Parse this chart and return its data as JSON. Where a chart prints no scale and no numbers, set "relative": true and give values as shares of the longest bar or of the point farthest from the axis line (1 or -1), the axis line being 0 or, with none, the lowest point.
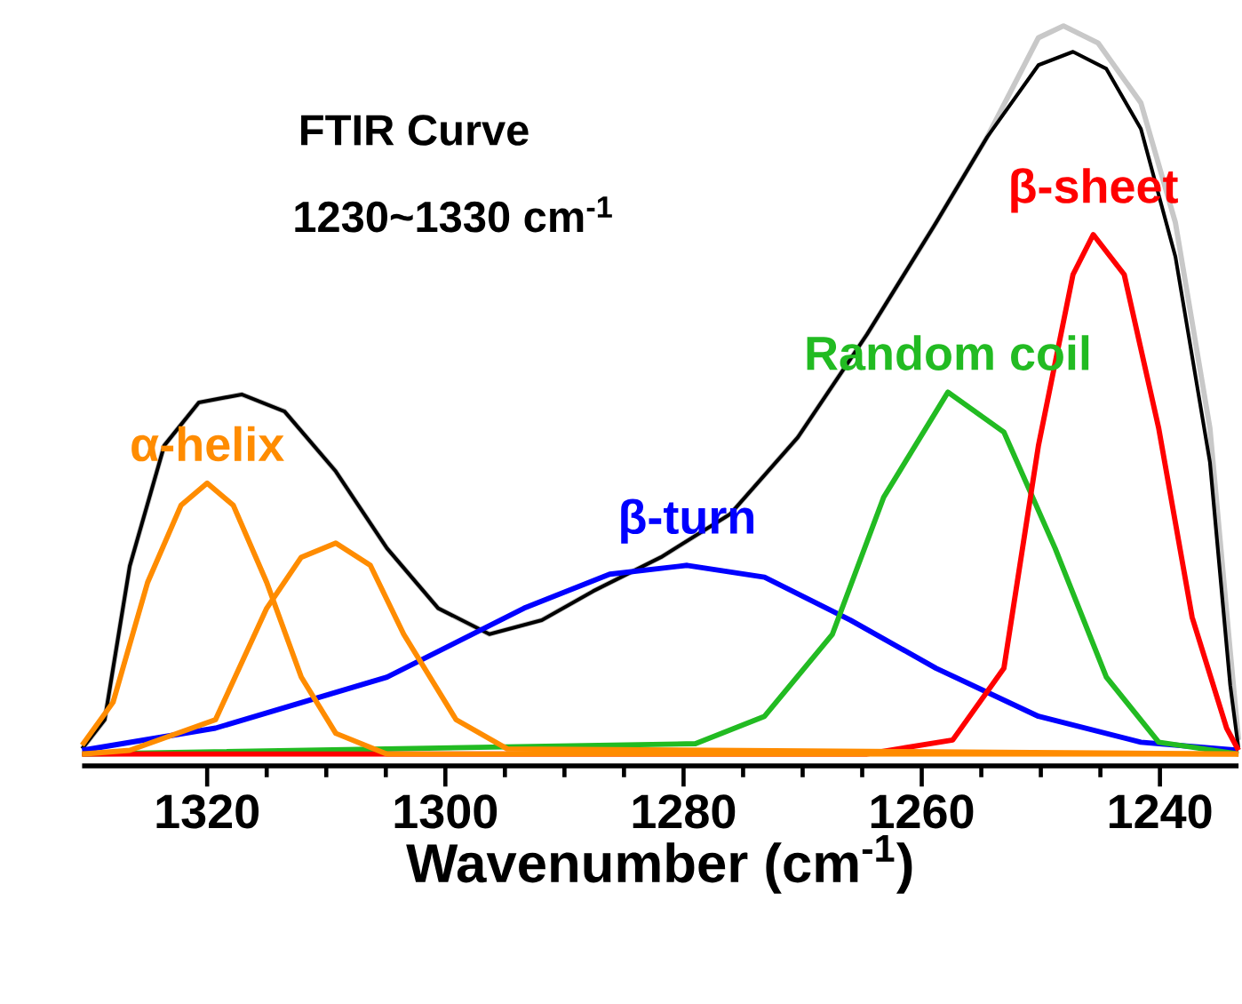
{
  "chart_data": {
    "type": "line",
    "title": "FTIR Curve",
    "subtitle": "1230~1330 cm$^{-1}$",
    "xlabel": "Wavenumber (cm$^{-1}$)",
    "relative": true,
    "xlim": [
      1330.5,
      1233.4
    ],
    "xticks": [
      1320,
      1300,
      1280,
      1260,
      1240
    ],
    "line_style": "solid",
    "grid": false,
    "series": [
      {
        "color": "#000000",
        "x": [
          1330.5,
          1328.6,
          1326.5,
          1323.6,
          1320.7,
          1317.1,
          1313.5,
          1309.2,
          1304.9,
          1300.6,
          1296.3,
          1291.9,
          1287.6,
          1281.9,
          1276.1,
          1270.4,
          1264.6,
          1258.8,
          1254.5,
          1250.2,
          1247.3,
          1244.5,
          1241.6,
          1238.7,
          1235.8,
          1234.1,
          1233.4
        ],
        "values": [
          0.023,
          0.0625,
          0.27,
          0.433,
          0.491,
          0.502,
          0.479,
          0.398,
          0.294,
          0.213,
          0.178,
          0.197,
          0.236,
          0.282,
          0.34,
          0.444,
          0.583,
          0.734,
          0.85,
          0.947,
          0.965,
          0.942,
          0.861,
          0.688,
          0.41,
          0.109,
          0.023
        ]
      },
      {
        "color": "#c8c8c8",
        "x": [
          1330.5,
          1328.6,
          1326.5,
          1323.6,
          1320.7,
          1317.1,
          1313.5,
          1309.2,
          1304.9,
          1300.6,
          1296.3,
          1291.9,
          1287.6,
          1281.9,
          1276.1,
          1270.4,
          1264.6,
          1258.8,
          1254.5,
          1250.2,
          1248.1,
          1245.2,
          1241.6,
          1238.7,
          1235.8,
          1234.1,
          1233.4
        ],
        "values": [
          0.023,
          0.0625,
          0.27,
          0.433,
          0.491,
          0.502,
          0.479,
          0.398,
          0.294,
          0.213,
          0.178,
          0.197,
          0.236,
          0.282,
          0.34,
          0.444,
          0.583,
          0.734,
          0.85,
          0.984,
          1.0,
          0.977,
          0.896,
          0.734,
          0.456,
          0.155,
          0.035
        ]
      },
      {
        "name": "β-turn",
        "color": "#0000ff",
        "x": [
          1330.5,
          1319.3,
          1304.9,
          1293.4,
          1286.2,
          1279.7,
          1273.2,
          1266.0,
          1258.8,
          1250.2,
          1241.6,
          1233.4
        ],
        "values": [
          0.021,
          0.051,
          0.12,
          0.213,
          0.259,
          0.271,
          0.255,
          0.197,
          0.132,
          0.067,
          0.032,
          0.021
        ]
      },
      {
        "name": "Random coil",
        "color": "#22bb22",
        "x": [
          1330.5,
          1279.0,
          1273.2,
          1267.5,
          1263.2,
          1257.8,
          1253.1,
          1248.8,
          1244.5,
          1240.1,
          1233.4
        ],
        "values": [
          0.016,
          0.03,
          0.067,
          0.178,
          0.363,
          0.505,
          0.451,
          0.294,
          0.12,
          0.032,
          0.016
        ]
      },
      {
        "name": "β-sheet",
        "color": "#ff0000",
        "x": [
          1330.5,
          1264.6,
          1257.4,
          1253.1,
          1250.2,
          1247.3,
          1245.6,
          1243.0,
          1240.1,
          1237.3,
          1234.4,
          1233.4
        ],
        "values": [
          0.016,
          0.016,
          0.035,
          0.132,
          0.433,
          0.664,
          0.718,
          0.664,
          0.456,
          0.201,
          0.051,
          0.021
        ]
      },
      {
        "name": "α-helix",
        "color": "#ff8c00",
        "x": [
          1330.5,
          1327.9,
          1325.0,
          1322.2,
          1320.0,
          1317.8,
          1315.0,
          1312.1,
          1309.2,
          1304.9,
          1233.4
        ],
        "values": [
          0.028,
          0.086,
          0.248,
          0.352,
          0.382,
          0.352,
          0.248,
          0.12,
          0.044,
          0.016,
          0.016
        ]
      },
      {
        "color": "#ff8c00",
        "x": [
          1330.5,
          1326.5,
          1319.3,
          1315.0,
          1312.1,
          1309.2,
          1306.3,
          1303.5,
          1299.1,
          1294.8,
          1233.4
        ],
        "values": [
          0.016,
          0.021,
          0.0625,
          0.213,
          0.282,
          0.301,
          0.271,
          0.178,
          0.0625,
          0.023,
          0.016
        ]
      }
    ]
  }
}
